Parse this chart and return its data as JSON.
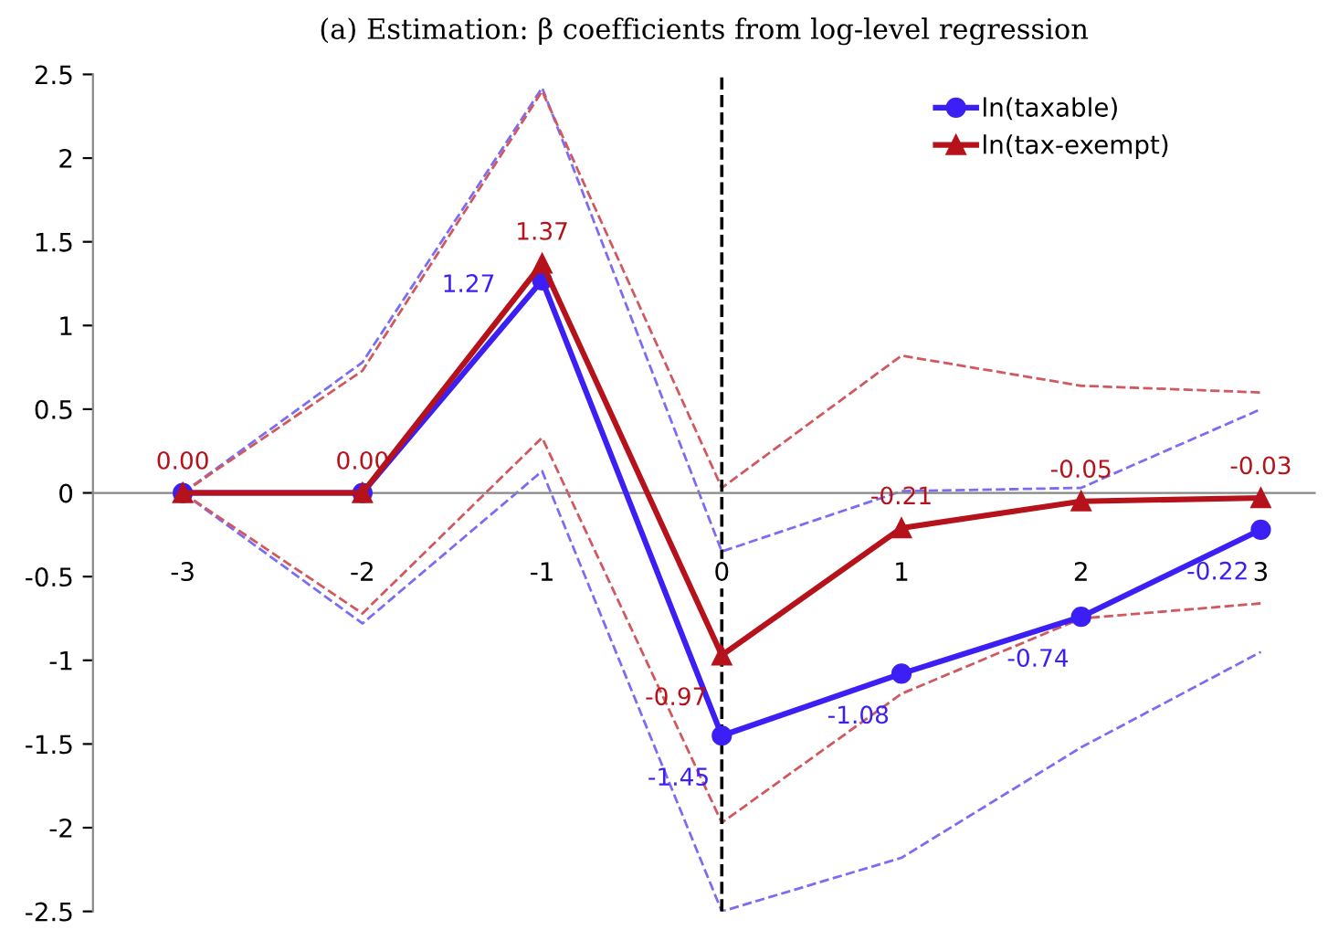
{
  "chart_data": {
    "type": "line",
    "title": "(a) Estimation: β coefficients from log-level regression",
    "x": [
      -3,
      -2,
      -1,
      0,
      1,
      2,
      3
    ],
    "series": [
      {
        "name": "ln(taxable)",
        "color": "#3b1ff5",
        "marker": "circle",
        "line_style": "solid",
        "values": [
          0,
          0,
          1.27,
          -1.45,
          -1.08,
          -0.74,
          -0.22
        ],
        "value_labels": [
          null,
          null,
          "1.27",
          "-1.45",
          "-1.08",
          "-0.74",
          "-0.22"
        ]
      },
      {
        "name": "ln(tax-exempt)",
        "color": "#b5121b",
        "marker": "triangle",
        "line_style": "solid",
        "values": [
          0,
          0,
          1.37,
          -0.97,
          -0.21,
          -0.05,
          -0.03
        ],
        "value_labels": [
          "0.00",
          "0.00",
          "1.37",
          "-0.97",
          "-0.21",
          "-0.05",
          "-0.03"
        ]
      },
      {
        "color": "#7b6cf5",
        "marker": "none",
        "line_style": "dashed",
        "values": [
          0,
          0.78,
          2.42,
          -0.35,
          0.01,
          0.03,
          0.5
        ]
      },
      {
        "color": "#7b6cf5",
        "marker": "none",
        "line_style": "dashed",
        "values": [
          0,
          -0.78,
          0.13,
          -2.5,
          -2.18,
          -1.52,
          -0.95
        ]
      },
      {
        "color": "#d0585e",
        "marker": "none",
        "line_style": "dashed",
        "values": [
          0,
          0.73,
          2.4,
          0.03,
          0.82,
          0.64,
          0.6
        ]
      },
      {
        "color": "#d0585e",
        "marker": "none",
        "line_style": "dashed",
        "values": [
          0,
          -0.72,
          0.33,
          -1.97,
          -1.2,
          -0.75,
          -0.66
        ]
      }
    ],
    "xlim": [
      -3.5,
      3.3
    ],
    "ylim": [
      -2.5,
      2.5
    ],
    "xticks": [
      -3,
      -2,
      -1,
      0,
      1,
      2,
      3
    ],
    "yticks": [
      -2.5,
      -2,
      -1.5,
      -1,
      -0.5,
      0,
      0.5,
      1,
      1.5,
      2,
      2.5
    ],
    "ref_lines": [
      {
        "axis": "x",
        "value": 0,
        "color": "#000000",
        "line_style": "dashed"
      }
    ],
    "grid": false,
    "legend": "top right"
  }
}
